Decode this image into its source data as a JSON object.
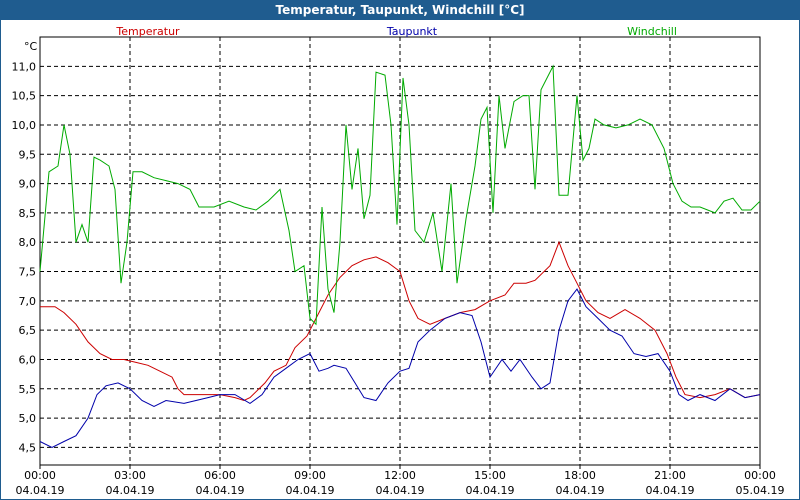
{
  "title": "Temperatur, Taupunkt, Windchill [°C]",
  "chart_data": {
    "type": "line",
    "ylabel": "°C",
    "ylim": [
      4.2,
      11.5
    ],
    "yticks": [
      "4,5",
      "5,0",
      "5,5",
      "6,0",
      "6,5",
      "7,0",
      "7,5",
      "8,0",
      "8,5",
      "9,0",
      "9,5",
      "10,0",
      "10,5",
      "11,0"
    ],
    "ytick_values": [
      4.5,
      5.0,
      5.5,
      6.0,
      6.5,
      7.0,
      7.5,
      8.0,
      8.5,
      9.0,
      9.5,
      10.0,
      10.5,
      11.0
    ],
    "xlim_hours": [
      0,
      24
    ],
    "xticks": [
      {
        "time": "00:00",
        "date": "04.04.19"
      },
      {
        "time": "03:00",
        "date": "04.04.19"
      },
      {
        "time": "06:00",
        "date": "04.04.19"
      },
      {
        "time": "09:00",
        "date": "04.04.19"
      },
      {
        "time": "12:00",
        "date": "04.04.19"
      },
      {
        "time": "15:00",
        "date": "04.04.19"
      },
      {
        "time": "18:00",
        "date": "04.04.19"
      },
      {
        "time": "21:00",
        "date": "04.04.19"
      },
      {
        "time": "00:00",
        "date": "05.04.19"
      }
    ],
    "xtick_hours": [
      0,
      3,
      6,
      9,
      12,
      15,
      18,
      21,
      24
    ],
    "grid": true,
    "legend_position": "top",
    "series": [
      {
        "name": "Temperatur",
        "color": "#cc0000",
        "points": [
          [
            0,
            6.9
          ],
          [
            0.5,
            6.9
          ],
          [
            0.8,
            6.8
          ],
          [
            1.2,
            6.6
          ],
          [
            1.6,
            6.3
          ],
          [
            2.0,
            6.1
          ],
          [
            2.4,
            6.0
          ],
          [
            2.8,
            6.0
          ],
          [
            3.2,
            5.95
          ],
          [
            3.6,
            5.9
          ],
          [
            4.0,
            5.8
          ],
          [
            4.4,
            5.7
          ],
          [
            4.6,
            5.5
          ],
          [
            4.8,
            5.4
          ],
          [
            5.2,
            5.4
          ],
          [
            5.6,
            5.4
          ],
          [
            6.0,
            5.4
          ],
          [
            6.5,
            5.35
          ],
          [
            6.8,
            5.3
          ],
          [
            7.0,
            5.35
          ],
          [
            7.5,
            5.6
          ],
          [
            7.8,
            5.8
          ],
          [
            8.2,
            5.9
          ],
          [
            8.5,
            6.2
          ],
          [
            8.9,
            6.4
          ],
          [
            9.2,
            6.7
          ],
          [
            9.6,
            7.1
          ],
          [
            10.0,
            7.4
          ],
          [
            10.4,
            7.6
          ],
          [
            10.8,
            7.7
          ],
          [
            11.2,
            7.75
          ],
          [
            11.6,
            7.65
          ],
          [
            12.0,
            7.5
          ],
          [
            12.3,
            7.0
          ],
          [
            12.6,
            6.7
          ],
          [
            13.0,
            6.6
          ],
          [
            13.5,
            6.7
          ],
          [
            14.0,
            6.8
          ],
          [
            14.5,
            6.85
          ],
          [
            15.0,
            7.0
          ],
          [
            15.5,
            7.1
          ],
          [
            15.8,
            7.3
          ],
          [
            16.2,
            7.3
          ],
          [
            16.5,
            7.35
          ],
          [
            17.0,
            7.6
          ],
          [
            17.3,
            8.0
          ],
          [
            17.6,
            7.6
          ],
          [
            17.9,
            7.3
          ],
          [
            18.2,
            7.0
          ],
          [
            18.6,
            6.8
          ],
          [
            19.0,
            6.7
          ],
          [
            19.5,
            6.85
          ],
          [
            20.0,
            6.7
          ],
          [
            20.5,
            6.5
          ],
          [
            20.9,
            6.1
          ],
          [
            21.2,
            5.7
          ],
          [
            21.5,
            5.4
          ],
          [
            22.0,
            5.35
          ],
          [
            22.5,
            5.4
          ],
          [
            23.0,
            5.5
          ],
          [
            23.5,
            5.35
          ],
          [
            24.0,
            5.4
          ]
        ]
      },
      {
        "name": "Taupunkt",
        "color": "#0000aa",
        "points": [
          [
            0,
            4.6
          ],
          [
            0.4,
            4.5
          ],
          [
            0.8,
            4.6
          ],
          [
            1.2,
            4.7
          ],
          [
            1.6,
            5.0
          ],
          [
            1.9,
            5.4
          ],
          [
            2.2,
            5.55
          ],
          [
            2.6,
            5.6
          ],
          [
            3.0,
            5.5
          ],
          [
            3.4,
            5.3
          ],
          [
            3.8,
            5.2
          ],
          [
            4.2,
            5.3
          ],
          [
            4.8,
            5.25
          ],
          [
            5.2,
            5.3
          ],
          [
            5.6,
            5.35
          ],
          [
            6.0,
            5.4
          ],
          [
            6.5,
            5.4
          ],
          [
            7.0,
            5.25
          ],
          [
            7.4,
            5.4
          ],
          [
            7.8,
            5.7
          ],
          [
            8.2,
            5.85
          ],
          [
            8.6,
            6.0
          ],
          [
            9.0,
            6.1
          ],
          [
            9.3,
            5.8
          ],
          [
            9.6,
            5.85
          ],
          [
            9.8,
            5.9
          ],
          [
            10.2,
            5.85
          ],
          [
            10.5,
            5.6
          ],
          [
            10.8,
            5.35
          ],
          [
            11.2,
            5.3
          ],
          [
            11.6,
            5.6
          ],
          [
            12.0,
            5.8
          ],
          [
            12.3,
            5.85
          ],
          [
            12.6,
            6.3
          ],
          [
            13.0,
            6.5
          ],
          [
            13.5,
            6.7
          ],
          [
            14.0,
            6.8
          ],
          [
            14.4,
            6.75
          ],
          [
            14.7,
            6.3
          ],
          [
            15.0,
            5.7
          ],
          [
            15.4,
            6.0
          ],
          [
            15.7,
            5.8
          ],
          [
            16.0,
            6.0
          ],
          [
            16.4,
            5.7
          ],
          [
            16.7,
            5.5
          ],
          [
            17.0,
            5.6
          ],
          [
            17.3,
            6.5
          ],
          [
            17.6,
            7.0
          ],
          [
            17.9,
            7.2
          ],
          [
            18.2,
            6.9
          ],
          [
            18.6,
            6.7
          ],
          [
            19.0,
            6.5
          ],
          [
            19.4,
            6.4
          ],
          [
            19.8,
            6.1
          ],
          [
            20.2,
            6.05
          ],
          [
            20.6,
            6.1
          ],
          [
            21.0,
            5.8
          ],
          [
            21.3,
            5.4
          ],
          [
            21.6,
            5.3
          ],
          [
            22.0,
            5.4
          ],
          [
            22.5,
            5.3
          ],
          [
            23.0,
            5.5
          ],
          [
            23.5,
            5.35
          ],
          [
            24.0,
            5.4
          ]
        ]
      },
      {
        "name": "Windchill",
        "color": "#00aa00",
        "points": [
          [
            0,
            7.5
          ],
          [
            0.3,
            9.2
          ],
          [
            0.6,
            9.3
          ],
          [
            0.8,
            10.0
          ],
          [
            1.0,
            9.5
          ],
          [
            1.2,
            8.0
          ],
          [
            1.4,
            8.3
          ],
          [
            1.6,
            8.0
          ],
          [
            1.8,
            9.45
          ],
          [
            2.0,
            9.4
          ],
          [
            2.3,
            9.3
          ],
          [
            2.5,
            8.9
          ],
          [
            2.7,
            7.3
          ],
          [
            2.9,
            8.0
          ],
          [
            3.1,
            9.2
          ],
          [
            3.4,
            9.2
          ],
          [
            3.8,
            9.1
          ],
          [
            4.2,
            9.05
          ],
          [
            4.6,
            9.0
          ],
          [
            5.0,
            8.9
          ],
          [
            5.3,
            8.6
          ],
          [
            5.8,
            8.6
          ],
          [
            6.3,
            8.7
          ],
          [
            6.8,
            8.6
          ],
          [
            7.2,
            8.55
          ],
          [
            7.6,
            8.7
          ],
          [
            8.0,
            8.9
          ],
          [
            8.3,
            8.2
          ],
          [
            8.5,
            7.5
          ],
          [
            8.8,
            7.6
          ],
          [
            9.0,
            6.7
          ],
          [
            9.2,
            6.6
          ],
          [
            9.4,
            8.6
          ],
          [
            9.6,
            7.2
          ],
          [
            9.8,
            6.8
          ],
          [
            10.0,
            8.0
          ],
          [
            10.2,
            10.0
          ],
          [
            10.4,
            8.9
          ],
          [
            10.6,
            9.6
          ],
          [
            10.8,
            8.4
          ],
          [
            11.0,
            8.8
          ],
          [
            11.2,
            10.9
          ],
          [
            11.5,
            10.85
          ],
          [
            11.7,
            10.0
          ],
          [
            11.9,
            8.3
          ],
          [
            12.1,
            10.8
          ],
          [
            12.3,
            10.0
          ],
          [
            12.5,
            8.2
          ],
          [
            12.8,
            8.0
          ],
          [
            13.1,
            8.5
          ],
          [
            13.4,
            7.5
          ],
          [
            13.7,
            9.0
          ],
          [
            13.9,
            7.3
          ],
          [
            14.2,
            8.4
          ],
          [
            14.5,
            9.3
          ],
          [
            14.7,
            10.1
          ],
          [
            14.9,
            10.3
          ],
          [
            15.1,
            8.5
          ],
          [
            15.3,
            10.5
          ],
          [
            15.5,
            9.6
          ],
          [
            15.8,
            10.4
          ],
          [
            16.1,
            10.5
          ],
          [
            16.3,
            10.5
          ],
          [
            16.5,
            8.9
          ],
          [
            16.7,
            10.6
          ],
          [
            16.9,
            10.8
          ],
          [
            17.1,
            11.0
          ],
          [
            17.3,
            8.8
          ],
          [
            17.6,
            8.8
          ],
          [
            17.9,
            10.5
          ],
          [
            18.1,
            9.4
          ],
          [
            18.3,
            9.6
          ],
          [
            18.5,
            10.1
          ],
          [
            18.8,
            10.0
          ],
          [
            19.2,
            9.95
          ],
          [
            19.6,
            10.0
          ],
          [
            20.0,
            10.1
          ],
          [
            20.4,
            10.0
          ],
          [
            20.8,
            9.6
          ],
          [
            21.1,
            9.0
          ],
          [
            21.4,
            8.7
          ],
          [
            21.7,
            8.6
          ],
          [
            22.0,
            8.6
          ],
          [
            22.5,
            8.5
          ],
          [
            22.8,
            8.7
          ],
          [
            23.1,
            8.75
          ],
          [
            23.4,
            8.55
          ],
          [
            23.7,
            8.55
          ],
          [
            24.0,
            8.7
          ]
        ]
      }
    ]
  }
}
